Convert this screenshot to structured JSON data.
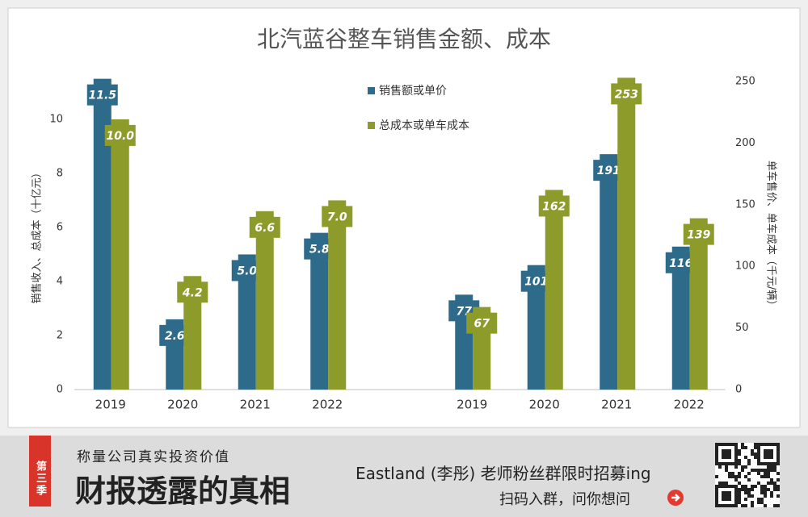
{
  "chart_data": {
    "type": "bar",
    "title": "北汽蓝谷整车销售金额、成本",
    "y_label": "销售收入、总成本（十亿元）",
    "y2_label": "单车售价、单车成本（千元/辆）",
    "categories": [
      "2019",
      "2020",
      "2021",
      "2022",
      null,
      "2019",
      "2020",
      "2021",
      "2022"
    ],
    "ylim": [
      0,
      11.4
    ],
    "yticks": [
      0,
      2,
      4,
      6,
      8,
      10
    ],
    "y2lim": [
      0,
      250
    ],
    "y2ticks": [
      0,
      50,
      100,
      150,
      200,
      250
    ],
    "series": [
      {
        "name": "销售额或单价",
        "color": "#2e6a8a",
        "values": [
          11.5,
          2.6,
          5.0,
          5.8,
          null,
          null,
          null,
          null,
          null
        ],
        "value_labels": [
          "11.5",
          "2.6",
          "5.0",
          "5.8",
          null,
          null,
          null,
          null,
          null
        ]
      },
      {
        "name": "总成本或单车成本",
        "color": "#8d9b2b",
        "values": [
          10.0,
          4.2,
          6.6,
          7.0,
          null,
          null,
          null,
          null,
          null
        ],
        "value_labels": [
          "10.0",
          "4.2",
          "6.6",
          "7.0",
          null,
          null,
          null,
          null,
          null
        ]
      },
      {
        "name": "销售额或单价",
        "color": "#2e6a8a",
        "axis": "y2",
        "values": [
          null,
          null,
          null,
          null,
          null,
          77,
          101,
          191,
          116
        ]
      },
      {
        "name": "总成本或单车成本",
        "color": "#8d9b2b",
        "axis": "y2",
        "values": [
          null,
          null,
          null,
          null,
          null,
          67,
          162,
          253,
          139
        ]
      }
    ]
  },
  "footer": {
    "badge": "第三季",
    "tagline": "称量公司真实投资价值",
    "headline": "财报透露的真相",
    "promo": "Eastland (李彤) 老师粉丝群限时招募ing",
    "cta": "扫码入群，问你想问"
  }
}
